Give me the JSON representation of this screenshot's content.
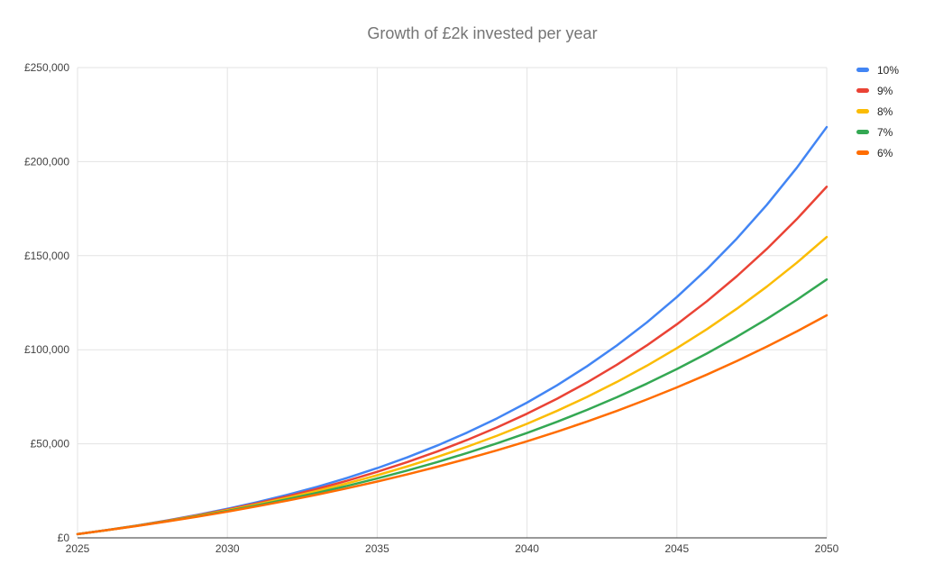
{
  "chart_data": {
    "type": "line",
    "title": "Growth of £2k invested per year",
    "xlim": [
      2025,
      2050
    ],
    "ylim": [
      0,
      250000
    ],
    "grid": true,
    "legend_position": "right",
    "x": [
      2025,
      2026,
      2027,
      2028,
      2029,
      2030,
      2031,
      2032,
      2033,
      2034,
      2035,
      2036,
      2037,
      2038,
      2039,
      2040,
      2041,
      2042,
      2043,
      2044,
      2045,
      2046,
      2047,
      2048,
      2049,
      2050
    ],
    "x_ticks": [
      2025,
      2030,
      2035,
      2040,
      2045,
      2050
    ],
    "y_ticks": [
      {
        "value": 0,
        "label": "£0"
      },
      {
        "value": 50000,
        "label": "£50,000"
      },
      {
        "value": 100000,
        "label": "£100,000"
      },
      {
        "value": 150000,
        "label": "£150,000"
      },
      {
        "value": 200000,
        "label": "£200,000"
      },
      {
        "value": 250000,
        "label": "£250,000"
      }
    ],
    "series": [
      {
        "name": "10%",
        "color": "#4285F4",
        "values": [
          2000,
          4200,
          6620,
          9282,
          12210,
          15431,
          18974,
          22872,
          27159,
          31875,
          37062,
          42769,
          49045,
          55950,
          63545,
          71899,
          81089,
          91198,
          102318,
          114550,
          128005,
          142805,
          159086,
          176995,
          196694,
          218364
        ]
      },
      {
        "name": "9%",
        "color": "#EA4335",
        "values": [
          2000,
          4180,
          6556,
          9146,
          11969,
          15047,
          18401,
          22057,
          26042,
          30386,
          35121,
          40281,
          45907,
          52038,
          58722,
          66007,
          73947,
          82603,
          92037,
          102320,
          113529,
          125747,
          139064,
          153580,
          169402,
          186648
        ]
      },
      {
        "name": "8%",
        "color": "#FBBC04",
        "values": [
          2000,
          4160,
          6493,
          9012,
          11733,
          14672,
          17846,
          21273,
          24975,
          28973,
          33291,
          37954,
          42991,
          48430,
          54304,
          60649,
          67500,
          74900,
          82893,
          91524,
          100846,
          110914,
          121787,
          133530,
          146212,
          159909
        ]
      },
      {
        "name": "7%",
        "color": "#34A853",
        "values": [
          2000,
          4140,
          6430,
          8880,
          11501,
          14307,
          17308,
          20520,
          23956,
          27633,
          31567,
          35777,
          40281,
          45101,
          50258,
          55776,
          61680,
          67998,
          74758,
          81991,
          89730,
          98011,
          106872,
          116353,
          126498,
          137353
        ]
      },
      {
        "name": "6%",
        "color": "#FF6D01",
        "values": [
          2000,
          4120,
          6367,
          8749,
          11274,
          13951,
          16788,
          19795,
          22983,
          26362,
          29943,
          33740,
          37764,
          42030,
          46552,
          51345,
          56426,
          61811,
          67520,
          73571,
          79985,
          86785,
          93992,
          101631,
          109729,
          118313
        ]
      }
    ],
    "colors": {
      "background": "#ffffff",
      "grid": "#e3e3e3",
      "axis_line": "#333333",
      "title": "#757575",
      "tick_label": "#424242",
      "legend_label": "#222222"
    }
  }
}
